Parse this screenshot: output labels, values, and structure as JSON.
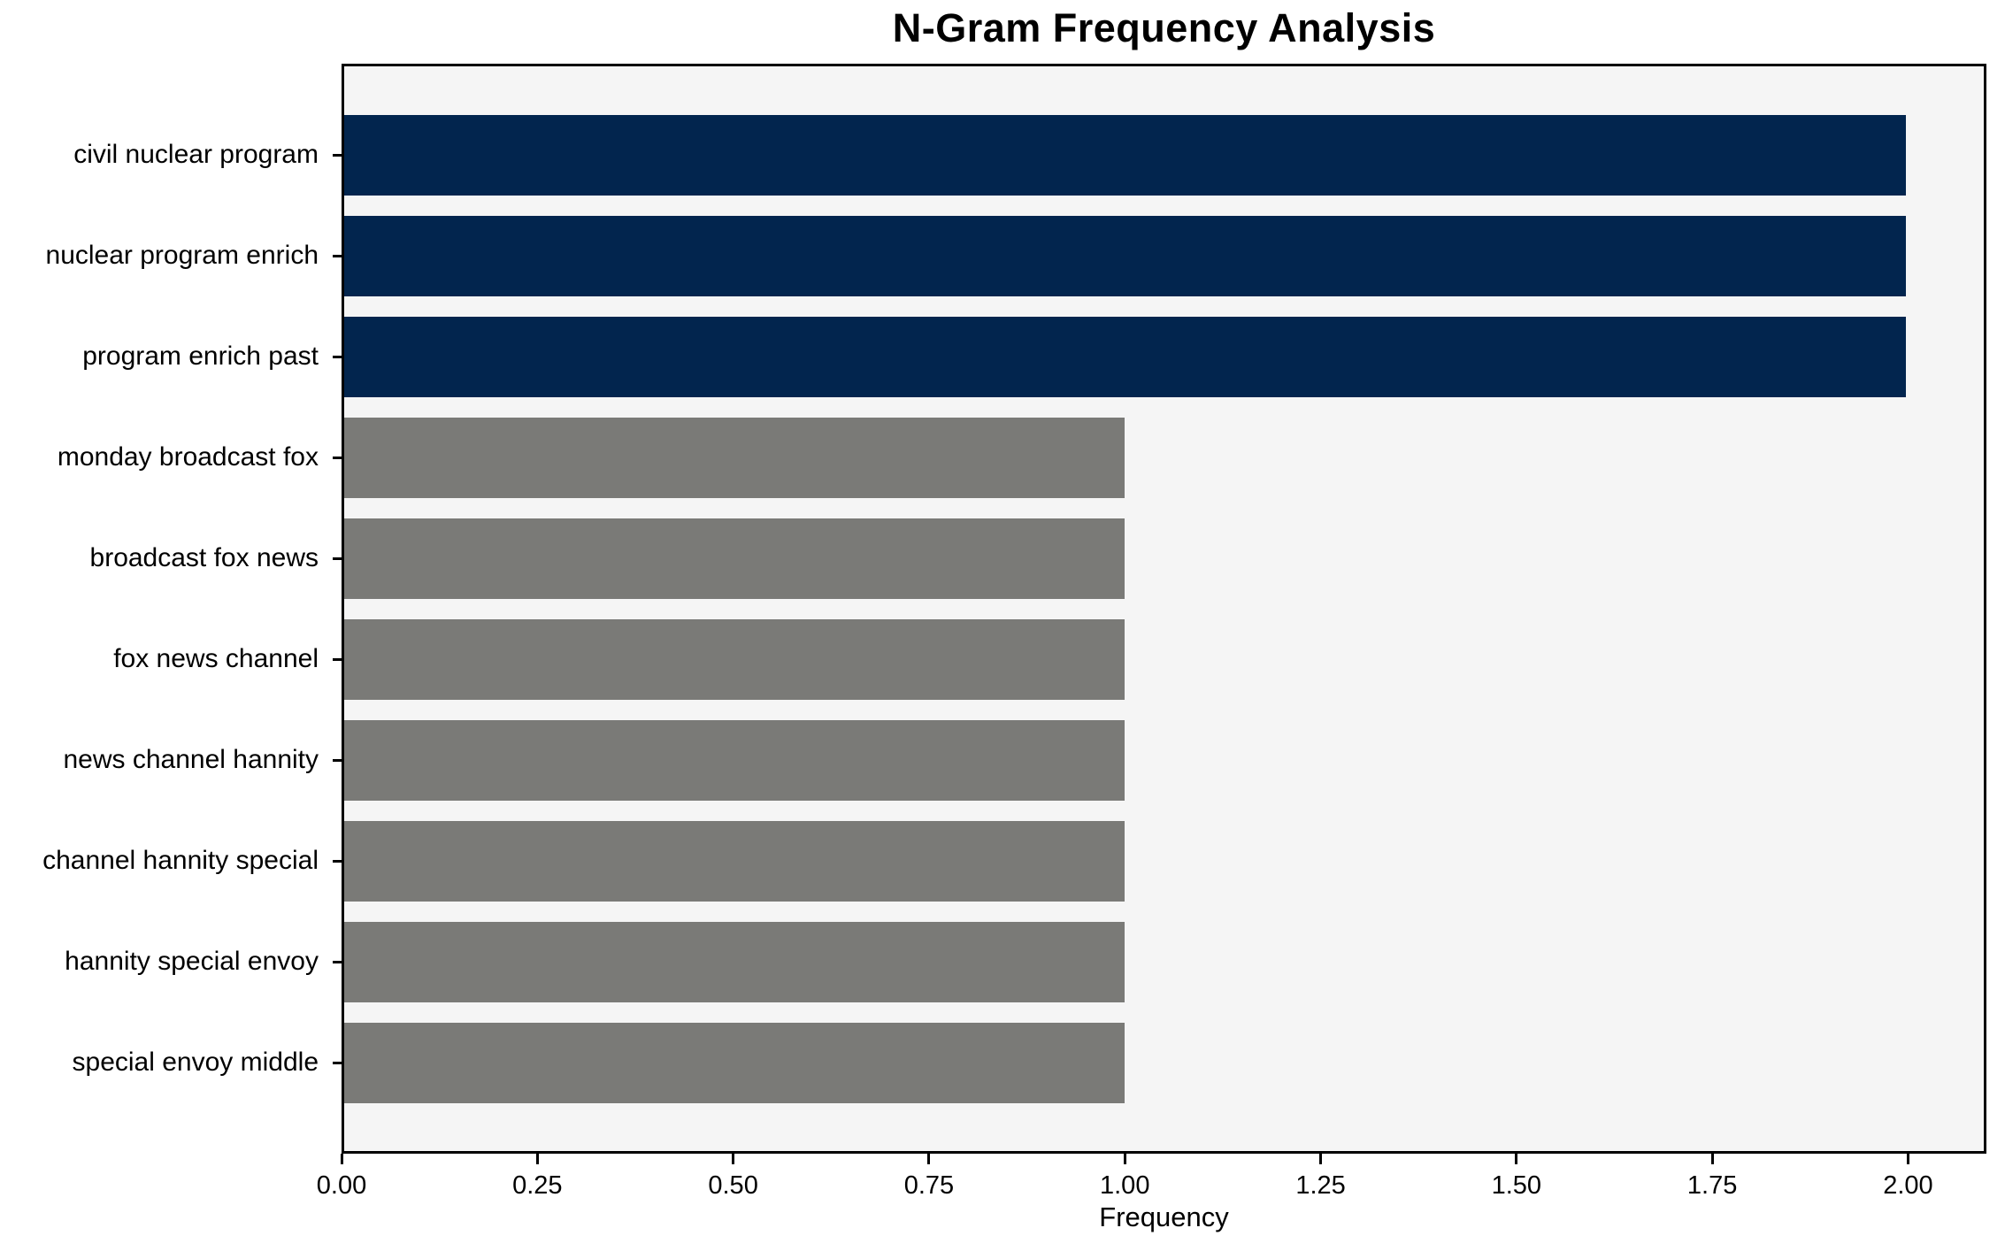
{
  "chart_data": {
    "type": "bar",
    "orientation": "horizontal",
    "title": "N-Gram Frequency Analysis",
    "xlabel": "Frequency",
    "ylabel": "",
    "categories": [
      "civil nuclear program",
      "nuclear program enrich",
      "program enrich past",
      "monday broadcast fox",
      "broadcast fox news",
      "fox news channel",
      "news channel hannity",
      "channel hannity special",
      "hannity special envoy",
      "special envoy middle"
    ],
    "values": [
      2,
      2,
      2,
      1,
      1,
      1,
      1,
      1,
      1,
      1
    ],
    "bar_colors": [
      "#02254e",
      "#02254e",
      "#02254e",
      "#7a7a77",
      "#7a7a77",
      "#7a7a77",
      "#7a7a77",
      "#7a7a77",
      "#7a7a77",
      "#7a7a77"
    ],
    "xlim": [
      0,
      2.1
    ],
    "xticks": [
      0,
      0.25,
      0.5,
      0.75,
      1.0,
      1.25,
      1.5,
      1.75,
      2.0
    ],
    "xtick_labels": [
      "0.00",
      "0.25",
      "0.50",
      "0.75",
      "1.00",
      "1.25",
      "1.50",
      "1.75",
      "2.00"
    ],
    "grid": false,
    "legend": "none",
    "plot_background": "#f5f5f5",
    "figure_background": "#ffffff",
    "highlight_color": "#02254e",
    "base_color": "#7a7a77"
  }
}
